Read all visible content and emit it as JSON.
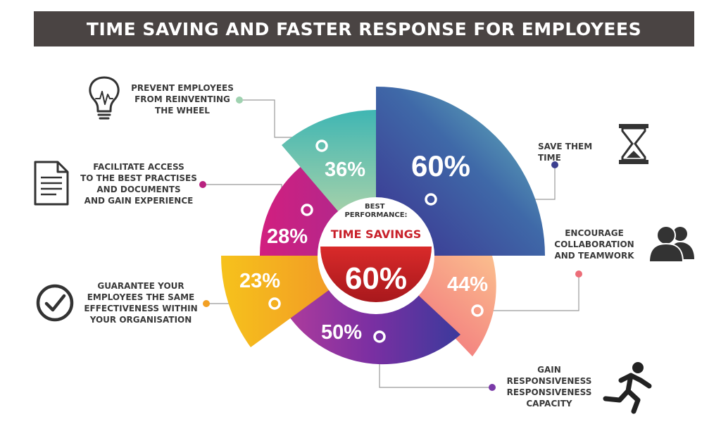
{
  "title": "TIME SAVING AND FASTER RESPONSE FOR EMPLOYEES",
  "center": {
    "top_text": "BEST\nPERFORMANCE:",
    "label": "TIME SAVINGS",
    "value": "60%"
  },
  "segments": [
    {
      "id": "save-time",
      "pct": "60%",
      "label": "SAVE THEM TIME",
      "icon": "hourglass-icon",
      "color": "#3b4aa0"
    },
    {
      "id": "collaboration",
      "pct": "44%",
      "label": "ENCOURAGE\nCOLLABORATION\nAND TEAMWORK",
      "icon": "people-icon",
      "color": "#f07a7a"
    },
    {
      "id": "responsiveness",
      "pct": "50%",
      "label": "GAIN\nRESPONSIVENESS\nRESPONSIVENESS\nCAPACITY",
      "icon": "running-person-icon",
      "color": "#7b3aa8"
    },
    {
      "id": "effectiveness",
      "pct": "23%",
      "label": "GUARANTEE YOUR\nEMPLOYEES THE SAME\nEFFECTIVENESS WITHIN\nYOUR ORGANISATION",
      "icon": "checkmark-circle-icon",
      "color": "#f5a623"
    },
    {
      "id": "best-practises",
      "pct": "28%",
      "label": "FACILITATE ACCESS\nTO THE BEST PRACTISES\nAND DOCUMENTS\nAND GAIN EXPERIENCE",
      "icon": "document-icon",
      "color": "#c2247e"
    },
    {
      "id": "reinventing",
      "pct": "36%",
      "label": "PREVENT EMPLOYEES\nFROM REINVENTING\nTHE WHEEL",
      "icon": "lightbulb-icon",
      "color": "#5ab8b0"
    }
  ]
}
